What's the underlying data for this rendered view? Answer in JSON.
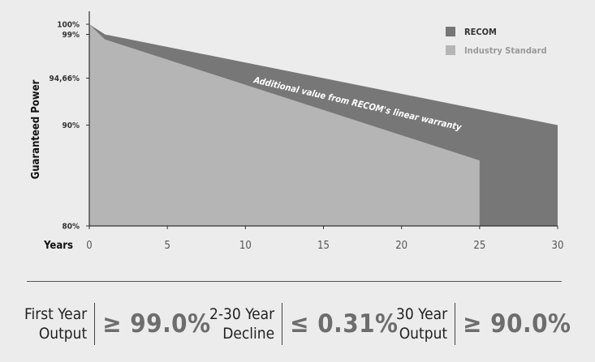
{
  "chart_data": {
    "type": "area",
    "ylabel": "Guaranteed Power",
    "xlabel": "Years",
    "x_ticks": [
      "0",
      "5",
      "10",
      "15",
      "20",
      "25",
      "30"
    ],
    "y_ticks": [
      "100%",
      "99%",
      "94,66%",
      "90%",
      "80%"
    ],
    "xlim": [
      0,
      30
    ],
    "ylim": [
      80,
      100
    ],
    "series": [
      {
        "name": "RECOM",
        "color": "#777777",
        "points": [
          [
            0,
            100
          ],
          [
            1,
            99
          ],
          [
            30,
            90
          ]
        ]
      },
      {
        "name": "Industry Standard",
        "color": "#b5b5b5",
        "points": [
          [
            0,
            100
          ],
          [
            1,
            98.5
          ],
          [
            25,
            86.5
          ]
        ]
      }
    ],
    "annotation": "Additional value from RECOM's linear warranty",
    "legend_position": "top-right"
  },
  "stats": [
    {
      "label_line1": "First Year",
      "label_line2": "Output",
      "value": "≥ 99.0%"
    },
    {
      "label_line1": "2-30 Year",
      "label_line2": "Decline",
      "value": "≤ 0.31%"
    },
    {
      "label_line1": "30 Year",
      "label_line2": "Output",
      "value": "≥ 90.0%"
    }
  ]
}
